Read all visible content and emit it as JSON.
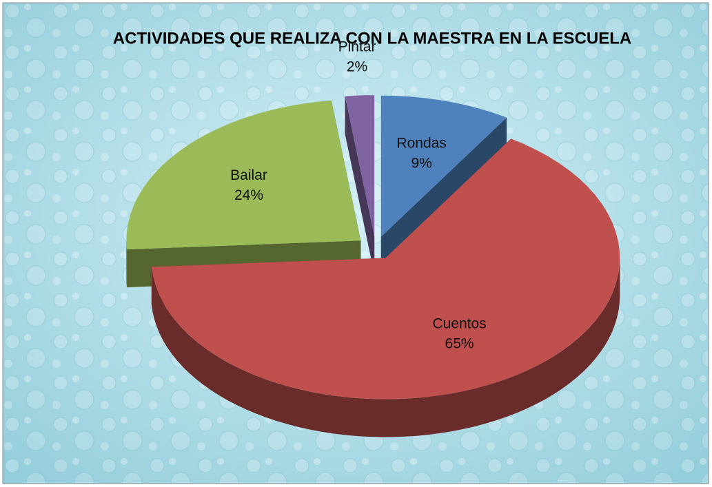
{
  "chart_data": {
    "type": "pie3d",
    "title": "ACTIVIDADES QUE REALIZA CON LA MAESTRA EN LA ESCUELA",
    "categories": [
      "Rondas",
      "Cuentos",
      "Bailar",
      "Pintar"
    ],
    "values": [
      9,
      65,
      24,
      2
    ],
    "value_labels": [
      "9%",
      "65%",
      "24%",
      "2%"
    ],
    "colors": [
      "#4f81bd",
      "#c0504d",
      "#9bbb59",
      "#8064a2"
    ]
  }
}
